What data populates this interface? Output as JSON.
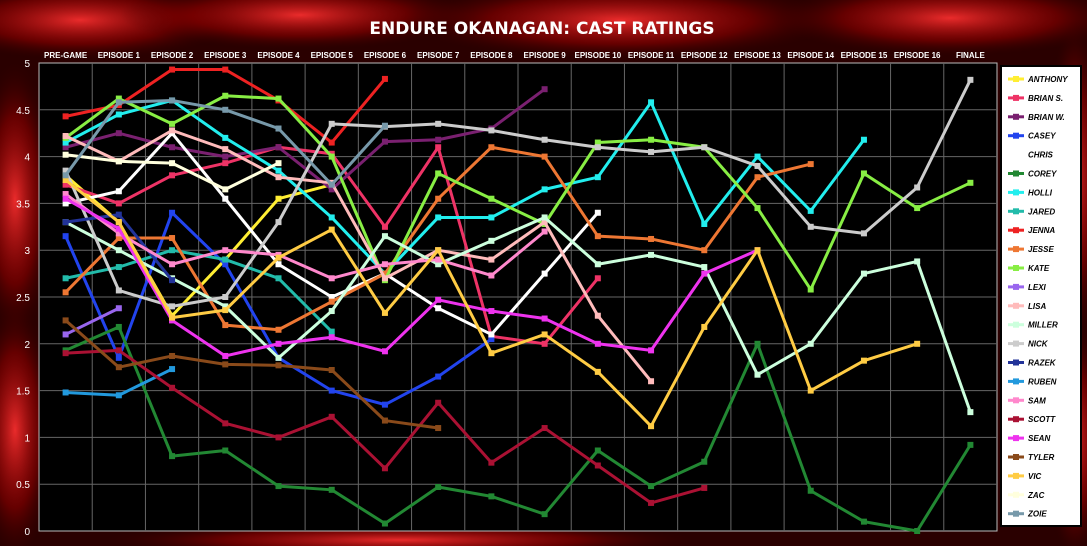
{
  "chart_data": {
    "type": "line",
    "title": "ENDURE OKANAGAN: CAST RATINGS",
    "categories": [
      "PRE-GAME",
      "EPISODE 1",
      "EPISODE 2",
      "EPISODE 3",
      "EPISODE 4",
      "EPISODE 5",
      "EPISODE 6",
      "EPISODE 7",
      "EPISODE 8",
      "EPISODE 9",
      "EPISODE 10",
      "EPISODE 11",
      "EPISODE 12",
      "EPISODE 13",
      "EPISODE 14",
      "EPISODE 15",
      "EPISODE 16",
      "FINALE"
    ],
    "y_ticks": [
      "0",
      "0.5",
      "1",
      "1.5",
      "2",
      "2.5",
      "3",
      "3.5",
      "4",
      "4.5",
      "5"
    ],
    "ylim": [
      0,
      5
    ],
    "grid": true,
    "legend_position": "right",
    "background_color": "#000000",
    "series": [
      {
        "name": "ANTHONY",
        "color": "#ffee33",
        "values": [
          3.8,
          3.3,
          2.3,
          2.9,
          3.55,
          3.7,
          null,
          null,
          null,
          null,
          null,
          null,
          null,
          null,
          null,
          null,
          null,
          null
        ]
      },
      {
        "name": "BRIAN S.",
        "color": "#ee3366",
        "values": [
          3.7,
          3.5,
          3.8,
          3.93,
          4.1,
          4.03,
          3.25,
          4.1,
          2.08,
          2.0,
          2.7,
          null,
          null,
          null,
          null,
          null,
          null,
          null
        ]
      },
      {
        "name": "BRIAN W.",
        "color": "#7a2070",
        "values": [
          4.1,
          4.25,
          4.1,
          4.0,
          4.1,
          3.65,
          4.16,
          4.18,
          4.3,
          4.72,
          null,
          null,
          null,
          null,
          null,
          null,
          null,
          null
        ]
      },
      {
        "name": "CASEY",
        "color": "#2244ee",
        "values": [
          3.15,
          1.85,
          3.4,
          2.85,
          1.85,
          1.5,
          1.35,
          1.65,
          2.05,
          null,
          null,
          null,
          null,
          null,
          null,
          null,
          null,
          null
        ]
      },
      {
        "name": "CHRIS",
        "color": "#ffffff",
        "values": [
          3.5,
          3.63,
          4.25,
          3.55,
          2.85,
          2.5,
          2.75,
          2.38,
          2.1,
          2.75,
          3.4,
          null,
          null,
          null,
          null,
          null,
          null,
          null
        ]
      },
      {
        "name": "COREY",
        "color": "#228833",
        "values": [
          1.93,
          2.18,
          0.8,
          0.86,
          0.48,
          0.44,
          0.08,
          0.47,
          0.37,
          0.18,
          0.86,
          0.48,
          0.74,
          2.0,
          0.43,
          0.1,
          0.0,
          0.92
        ]
      },
      {
        "name": "HOLLI",
        "color": "#22eeee",
        "values": [
          4.15,
          4.45,
          4.6,
          4.2,
          3.85,
          3.35,
          2.75,
          3.35,
          3.35,
          3.65,
          3.78,
          4.58,
          3.28,
          4.0,
          3.42,
          4.18,
          null,
          null
        ]
      },
      {
        "name": "JARED",
        "color": "#22bbaa",
        "values": [
          2.7,
          2.82,
          3.0,
          2.9,
          2.7,
          2.13,
          null,
          null,
          null,
          null,
          null,
          null,
          null,
          null,
          null,
          null,
          null,
          null
        ]
      },
      {
        "name": "JENNA",
        "color": "#ee2222",
        "values": [
          4.43,
          4.55,
          4.93,
          4.93,
          4.6,
          4.15,
          4.83,
          null,
          null,
          null,
          null,
          null,
          null,
          null,
          null,
          null,
          null,
          null
        ]
      },
      {
        "name": "JESSE",
        "color": "#ee7733",
        "values": [
          2.55,
          3.13,
          3.13,
          2.2,
          2.15,
          2.45,
          2.75,
          3.55,
          4.1,
          4.0,
          3.15,
          3.12,
          3.0,
          3.78,
          3.92,
          null,
          null,
          null
        ]
      },
      {
        "name": "KATE",
        "color": "#88ee44",
        "values": [
          4.2,
          4.62,
          4.35,
          4.65,
          4.62,
          4.0,
          2.68,
          3.82,
          3.55,
          3.28,
          4.15,
          4.18,
          4.1,
          3.45,
          2.58,
          3.82,
          3.45,
          3.72
        ]
      },
      {
        "name": "LEXI",
        "color": "#9966ee",
        "values": [
          2.1,
          2.38,
          null,
          null,
          null,
          null,
          null,
          null,
          null,
          null,
          null,
          null,
          null,
          null,
          null,
          null,
          null,
          null
        ]
      },
      {
        "name": "LISA",
        "color": "#ffbbbb",
        "values": [
          4.22,
          3.95,
          4.28,
          4.08,
          3.78,
          3.72,
          2.7,
          3.0,
          2.9,
          3.3,
          2.3,
          1.6,
          null,
          null,
          null,
          null,
          null,
          null
        ]
      },
      {
        "name": "MILLER",
        "color": "#ccffdd",
        "values": [
          3.3,
          3.0,
          2.7,
          2.4,
          1.85,
          2.35,
          3.15,
          2.85,
          3.1,
          3.35,
          2.85,
          2.95,
          2.82,
          1.67,
          2.0,
          2.75,
          2.88,
          1.27
        ]
      },
      {
        "name": "NICK",
        "color": "#cccccc",
        "values": [
          3.85,
          2.57,
          2.4,
          2.5,
          3.3,
          4.35,
          4.32,
          4.35,
          4.28,
          4.18,
          4.1,
          4.05,
          4.1,
          3.9,
          3.25,
          3.18,
          3.67,
          4.82
        ]
      },
      {
        "name": "RAZEK",
        "color": "#223399",
        "values": [
          3.3,
          3.38,
          2.68,
          null,
          null,
          null,
          null,
          null,
          null,
          null,
          null,
          null,
          null,
          null,
          null,
          null,
          null,
          null
        ]
      },
      {
        "name": "RUBEN",
        "color": "#2299dd",
        "values": [
          1.48,
          1.45,
          1.73,
          null,
          null,
          null,
          null,
          null,
          null,
          null,
          null,
          null,
          null,
          null,
          null,
          null,
          null,
          null
        ]
      },
      {
        "name": "SAM",
        "color": "#ff88cc",
        "values": [
          3.6,
          3.18,
          2.85,
          3.0,
          2.95,
          2.7,
          2.85,
          2.9,
          2.73,
          3.2,
          null,
          null,
          null,
          null,
          null,
          null,
          null,
          null
        ]
      },
      {
        "name": "SCOTT",
        "color": "#aa1133",
        "values": [
          1.9,
          1.93,
          1.53,
          1.15,
          1.0,
          1.22,
          0.67,
          1.37,
          0.73,
          1.1,
          0.7,
          0.3,
          0.46,
          null,
          null,
          null,
          null,
          null
        ]
      },
      {
        "name": "SEAN",
        "color": "#ee33ee",
        "values": [
          3.55,
          3.23,
          2.25,
          1.87,
          2.0,
          2.07,
          1.92,
          2.47,
          2.35,
          2.27,
          2.0,
          1.93,
          2.75,
          3.0,
          null,
          null,
          null,
          null
        ]
      },
      {
        "name": "TYLER",
        "color": "#8a4a1a",
        "values": [
          2.25,
          1.75,
          1.87,
          1.78,
          1.77,
          1.72,
          1.18,
          1.1,
          null,
          null,
          null,
          null,
          null,
          null,
          null,
          null,
          null,
          null
        ]
      },
      {
        "name": "VIC",
        "color": "#ffcc44",
        "values": [
          3.75,
          3.3,
          2.28,
          2.36,
          2.92,
          3.22,
          2.33,
          3.0,
          1.9,
          2.1,
          1.7,
          1.12,
          2.18,
          3.0,
          1.5,
          1.82,
          2.0,
          null
        ]
      },
      {
        "name": "ZAC",
        "color": "#ffffdd",
        "values": [
          4.02,
          3.95,
          3.93,
          3.65,
          3.93,
          null,
          null,
          null,
          null,
          null,
          null,
          null,
          null,
          null,
          null,
          null,
          null,
          null
        ]
      },
      {
        "name": "ZOIE",
        "color": "#7799aa",
        "values": [
          3.8,
          4.58,
          4.6,
          4.5,
          4.3,
          3.7,
          4.33,
          null,
          null,
          null,
          null,
          null,
          null,
          null,
          null,
          null,
          null,
          null
        ]
      }
    ]
  }
}
